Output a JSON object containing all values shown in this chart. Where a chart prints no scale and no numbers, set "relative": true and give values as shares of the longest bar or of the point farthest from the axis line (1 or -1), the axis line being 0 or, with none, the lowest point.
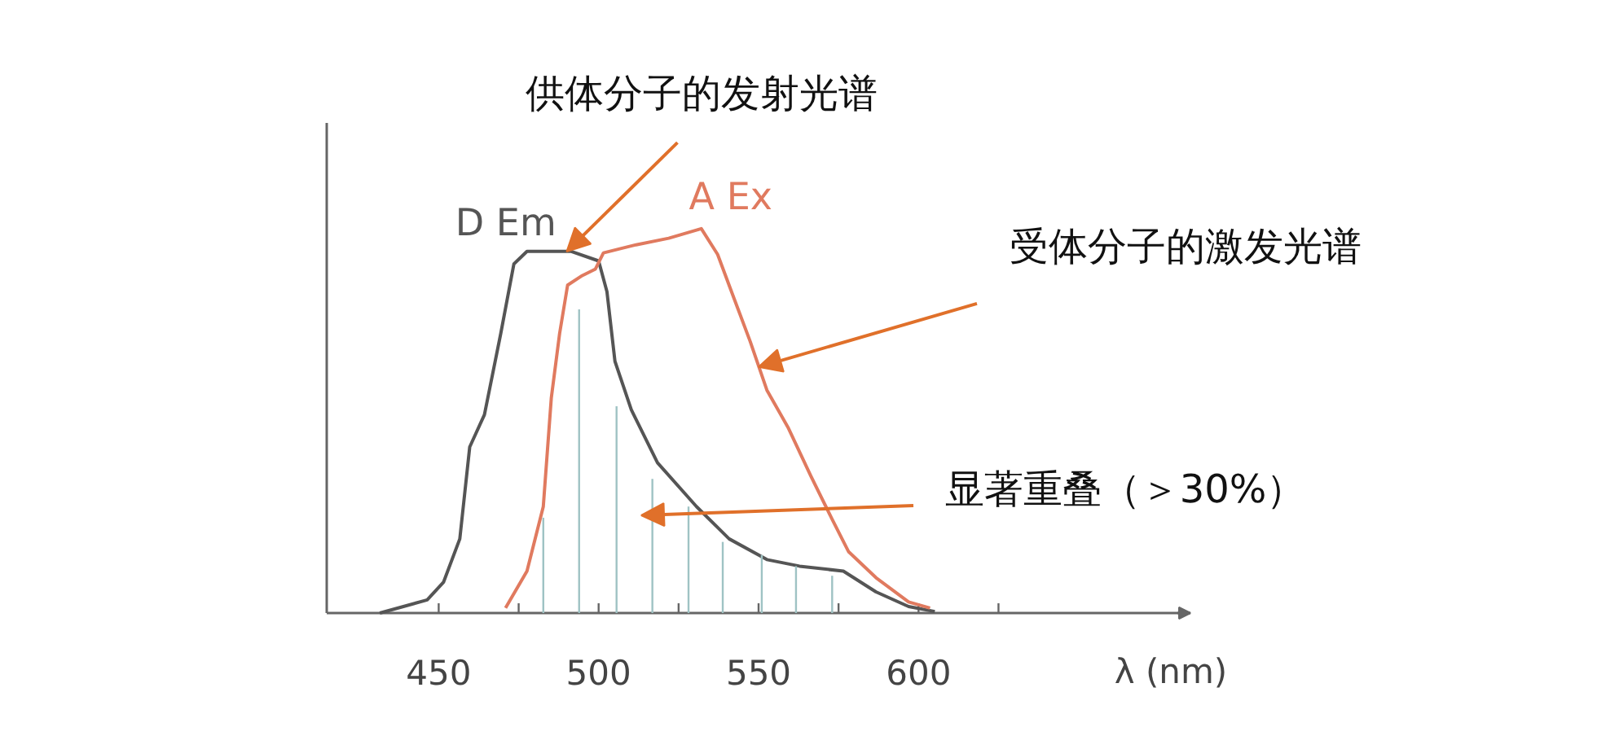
{
  "chart_data": {
    "type": "line",
    "relative": true,
    "xlabel": "λ (nm)",
    "xlim": [
      415,
      685
    ],
    "xticks": [
      450,
      {
        "value": 475,
        "label": null
      },
      500,
      {
        "value": 525,
        "label": null
      },
      550,
      {
        "value": 575,
        "label": null
      },
      600,
      {
        "value": 625,
        "label": null
      }
    ],
    "grid": false,
    "legend": false,
    "marker": "none",
    "line_style": "solid",
    "series": [
      {
        "name": "D Em",
        "color": "#555555",
        "x": [
          431.6,
          446.4,
          451.5,
          456.6,
          459.7,
          464.3,
          469.4,
          473.5,
          477.6,
          491.3,
          500,
          502.6,
          505.1,
          510.2,
          518.4,
          530.6,
          540.8,
          552.6,
          562.8,
          576.5,
          586.7,
          596.9,
          605.1
        ],
        "values": [
          0,
          0.034,
          0.08,
          0.193,
          0.432,
          0.516,
          0.727,
          0.908,
          0.941,
          0.941,
          0.916,
          0.836,
          0.655,
          0.529,
          0.391,
          0.277,
          0.193,
          0.139,
          0.122,
          0.109,
          0.055,
          0.017,
          0.004
        ]
      },
      {
        "name": "A Ex",
        "color": "#e07a5f",
        "x": [
          470.9,
          477.6,
          482.7,
          485.2,
          487.8,
          490.3,
          494.9,
          499,
          501.5,
          511.7,
          521.9,
          532.1,
          537.2,
          542.3,
          547.4,
          552.6,
          559.2,
          566.3,
          573,
          578.1,
          586.7,
          596.9,
          603.6
        ],
        "values": [
          0.013,
          0.109,
          0.277,
          0.559,
          0.727,
          0.853,
          0.878,
          0.895,
          0.937,
          0.958,
          0.975,
          1,
          0.933,
          0.819,
          0.706,
          0.58,
          0.483,
          0.357,
          0.244,
          0.16,
          0.092,
          0.029,
          0.013
        ]
      },
      {
        "type": "bar",
        "color": "#9fc3c4",
        "x": [
          482.7,
          493.9,
          505.6,
          516.8,
          528.1,
          538.8,
          551,
          561.7,
          573
        ],
        "values": [
          0.248,
          0.79,
          0.538,
          0.349,
          0.277,
          0.185,
          0.151,
          0.122,
          0.097
        ]
      }
    ],
    "annotations": [
      {
        "text": "供体分子的发射光谱",
        "x": 490,
        "y": 0.94
      },
      {
        "text": "受体分子的激发光谱",
        "x": 550,
        "y": 0.64
      },
      "显著重叠（＞30%）"
    ]
  }
}
